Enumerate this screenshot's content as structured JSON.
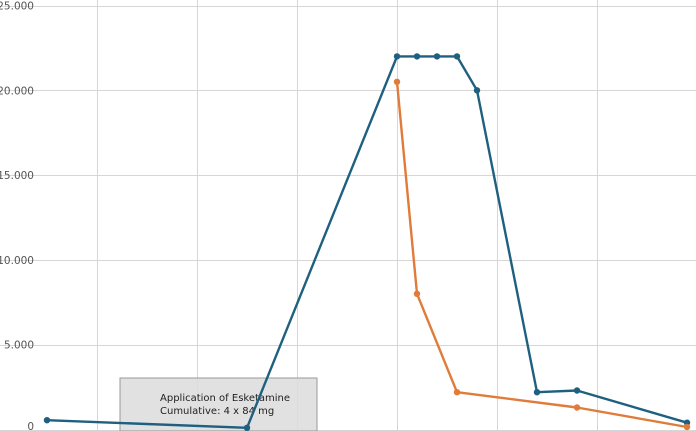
{
  "chart_data": {
    "type": "line",
    "ylim": [
      0,
      25
    ],
    "y_ticks": [
      {
        "value": 0,
        "label": "0"
      },
      {
        "value": 5,
        "label": "5.000"
      },
      {
        "value": 10,
        "label": "10.000"
      },
      {
        "value": 15,
        "label": "15.000"
      },
      {
        "value": 20,
        "label": "20.000"
      },
      {
        "value": 25,
        "label": "25.000"
      }
    ],
    "x_gridlines": [
      0.5,
      1.5,
      2.5,
      3.5,
      4.5,
      5.5,
      6.5
    ],
    "xlim": [
      0,
      6.5
    ],
    "grid": true,
    "series": [
      {
        "color": "#1f6080",
        "points": [
          [
            0,
            0.55
          ],
          [
            2,
            0.1
          ],
          [
            3.5,
            22
          ],
          [
            3.7,
            22
          ],
          [
            3.9,
            22
          ],
          [
            4.1,
            22
          ],
          [
            4.3,
            20
          ],
          [
            4.9,
            2.2
          ],
          [
            5.3,
            2.3
          ],
          [
            6.4,
            0.4
          ]
        ]
      },
      {
        "color": "#e07b39",
        "points": [
          [
            3.5,
            20.5
          ],
          [
            3.7,
            8
          ],
          [
            4.1,
            2.2
          ],
          [
            5.3,
            1.3
          ],
          [
            6.4,
            0.15
          ]
        ]
      }
    ],
    "annotation": {
      "line1": "Application of Esketamine",
      "line2": "Cumulative: 4 x 84 mg"
    }
  }
}
